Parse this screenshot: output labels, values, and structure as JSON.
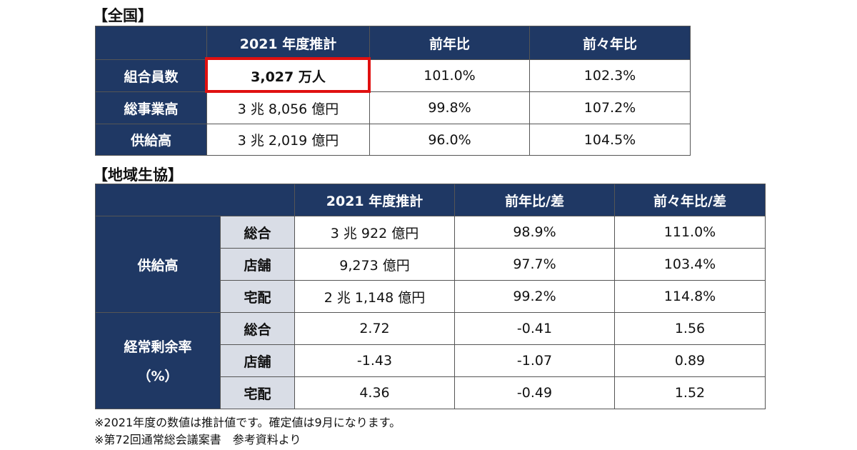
{
  "national": {
    "title": "【全国】",
    "headers": [
      "2021 年度推計",
      "前年比",
      "前々年比"
    ],
    "rows": [
      {
        "label": "組合員数",
        "values": [
          "3,027 万人",
          "101.0%",
          "102.3%"
        ]
      },
      {
        "label": "総事業高",
        "values": [
          "3 兆 8,056 億円",
          "99.8%",
          "107.2%"
        ]
      },
      {
        "label": "供給高",
        "values": [
          "3 兆 2,019 億円",
          "96.0%",
          "104.5%"
        ]
      }
    ]
  },
  "regional": {
    "title": "【地域生協】",
    "headers": [
      "2021 年度推計",
      "前年比/差",
      "前々年比/差"
    ],
    "groups": [
      {
        "label": "供給高",
        "rows": [
          {
            "sub": "総合",
            "values": [
              "3 兆 922 億円",
              "98.9%",
              "111.0%"
            ]
          },
          {
            "sub": "店舗",
            "values": [
              "9,273 億円",
              "97.7%",
              "103.4%"
            ]
          },
          {
            "sub": "宅配",
            "values": [
              "2 兆 1,148 億円",
              "99.2%",
              "114.8%"
            ]
          }
        ]
      },
      {
        "label_line1": "経常剰余率",
        "label_line2": "（%）",
        "rows": [
          {
            "sub": "総合",
            "values": [
              "2.72",
              "-0.41",
              "1.56"
            ]
          },
          {
            "sub": "店舗",
            "values": [
              "-1.43",
              "-1.07",
              "0.89"
            ]
          },
          {
            "sub": "宅配",
            "values": [
              "4.36",
              "-0.49",
              "1.52"
            ]
          }
        ]
      }
    ]
  },
  "notes": [
    "※2021年度の数値は推計値です。確定値は9月になります。",
    "※第72回通常総会議案書　参考資料より"
  ],
  "colors": {
    "header_bg": "#1f3864",
    "sub_bg": "#d9dde6",
    "highlight": "#e01010"
  }
}
